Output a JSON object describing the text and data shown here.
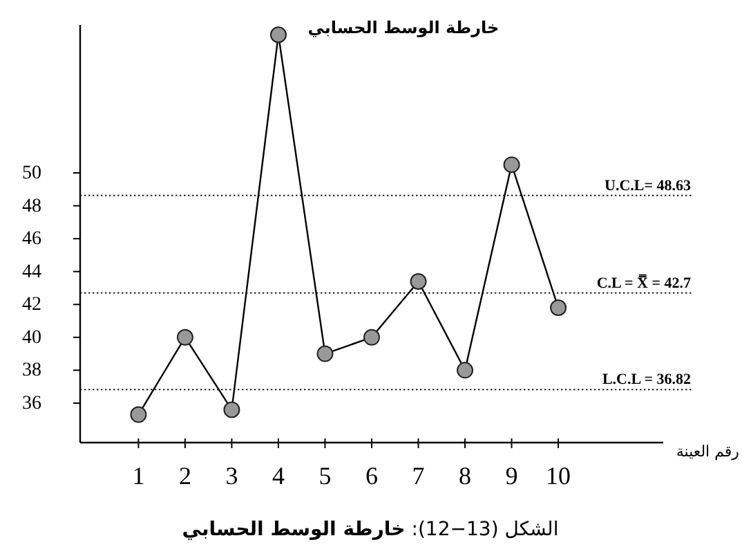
{
  "chart_data": {
    "type": "line",
    "title": "خارطة الوسط الحسابي",
    "xlabel": "رقم العينة",
    "x": [
      1,
      2,
      3,
      4,
      5,
      6,
      7,
      8,
      9,
      10
    ],
    "series": [
      {
        "color": "#999999",
        "values": [
          35.3,
          40,
          35.6,
          58.4,
          39,
          40,
          43.4,
          38,
          50.5,
          41.8
        ]
      }
    ],
    "xlim": [
      -0.25,
      12.25
    ],
    "ylim": [
      33.6,
      59
    ],
    "xticks": [
      1,
      2,
      3,
      4,
      5,
      6,
      7,
      8,
      9,
      10
    ],
    "yticks": [
      36,
      38,
      40,
      42,
      44,
      46,
      48,
      50
    ],
    "ref_lines": [
      {
        "axis": "y",
        "value": 48.63,
        "label": "U.C.L= 48.63",
        "line_style": "dotted"
      },
      {
        "axis": "y",
        "value": 42.7,
        "label": "C.L = X̿ = 42.7",
        "line_style": "dotted"
      },
      {
        "axis": "y",
        "value": 36.82,
        "label": "L.C.L = 36.82",
        "line_style": "dotted"
      }
    ],
    "annotations": [
      "الشكل (13−12): **خارطة الوسط الحسابي**"
    ],
    "marker": "circle",
    "line_style": "solid",
    "grid": false
  }
}
